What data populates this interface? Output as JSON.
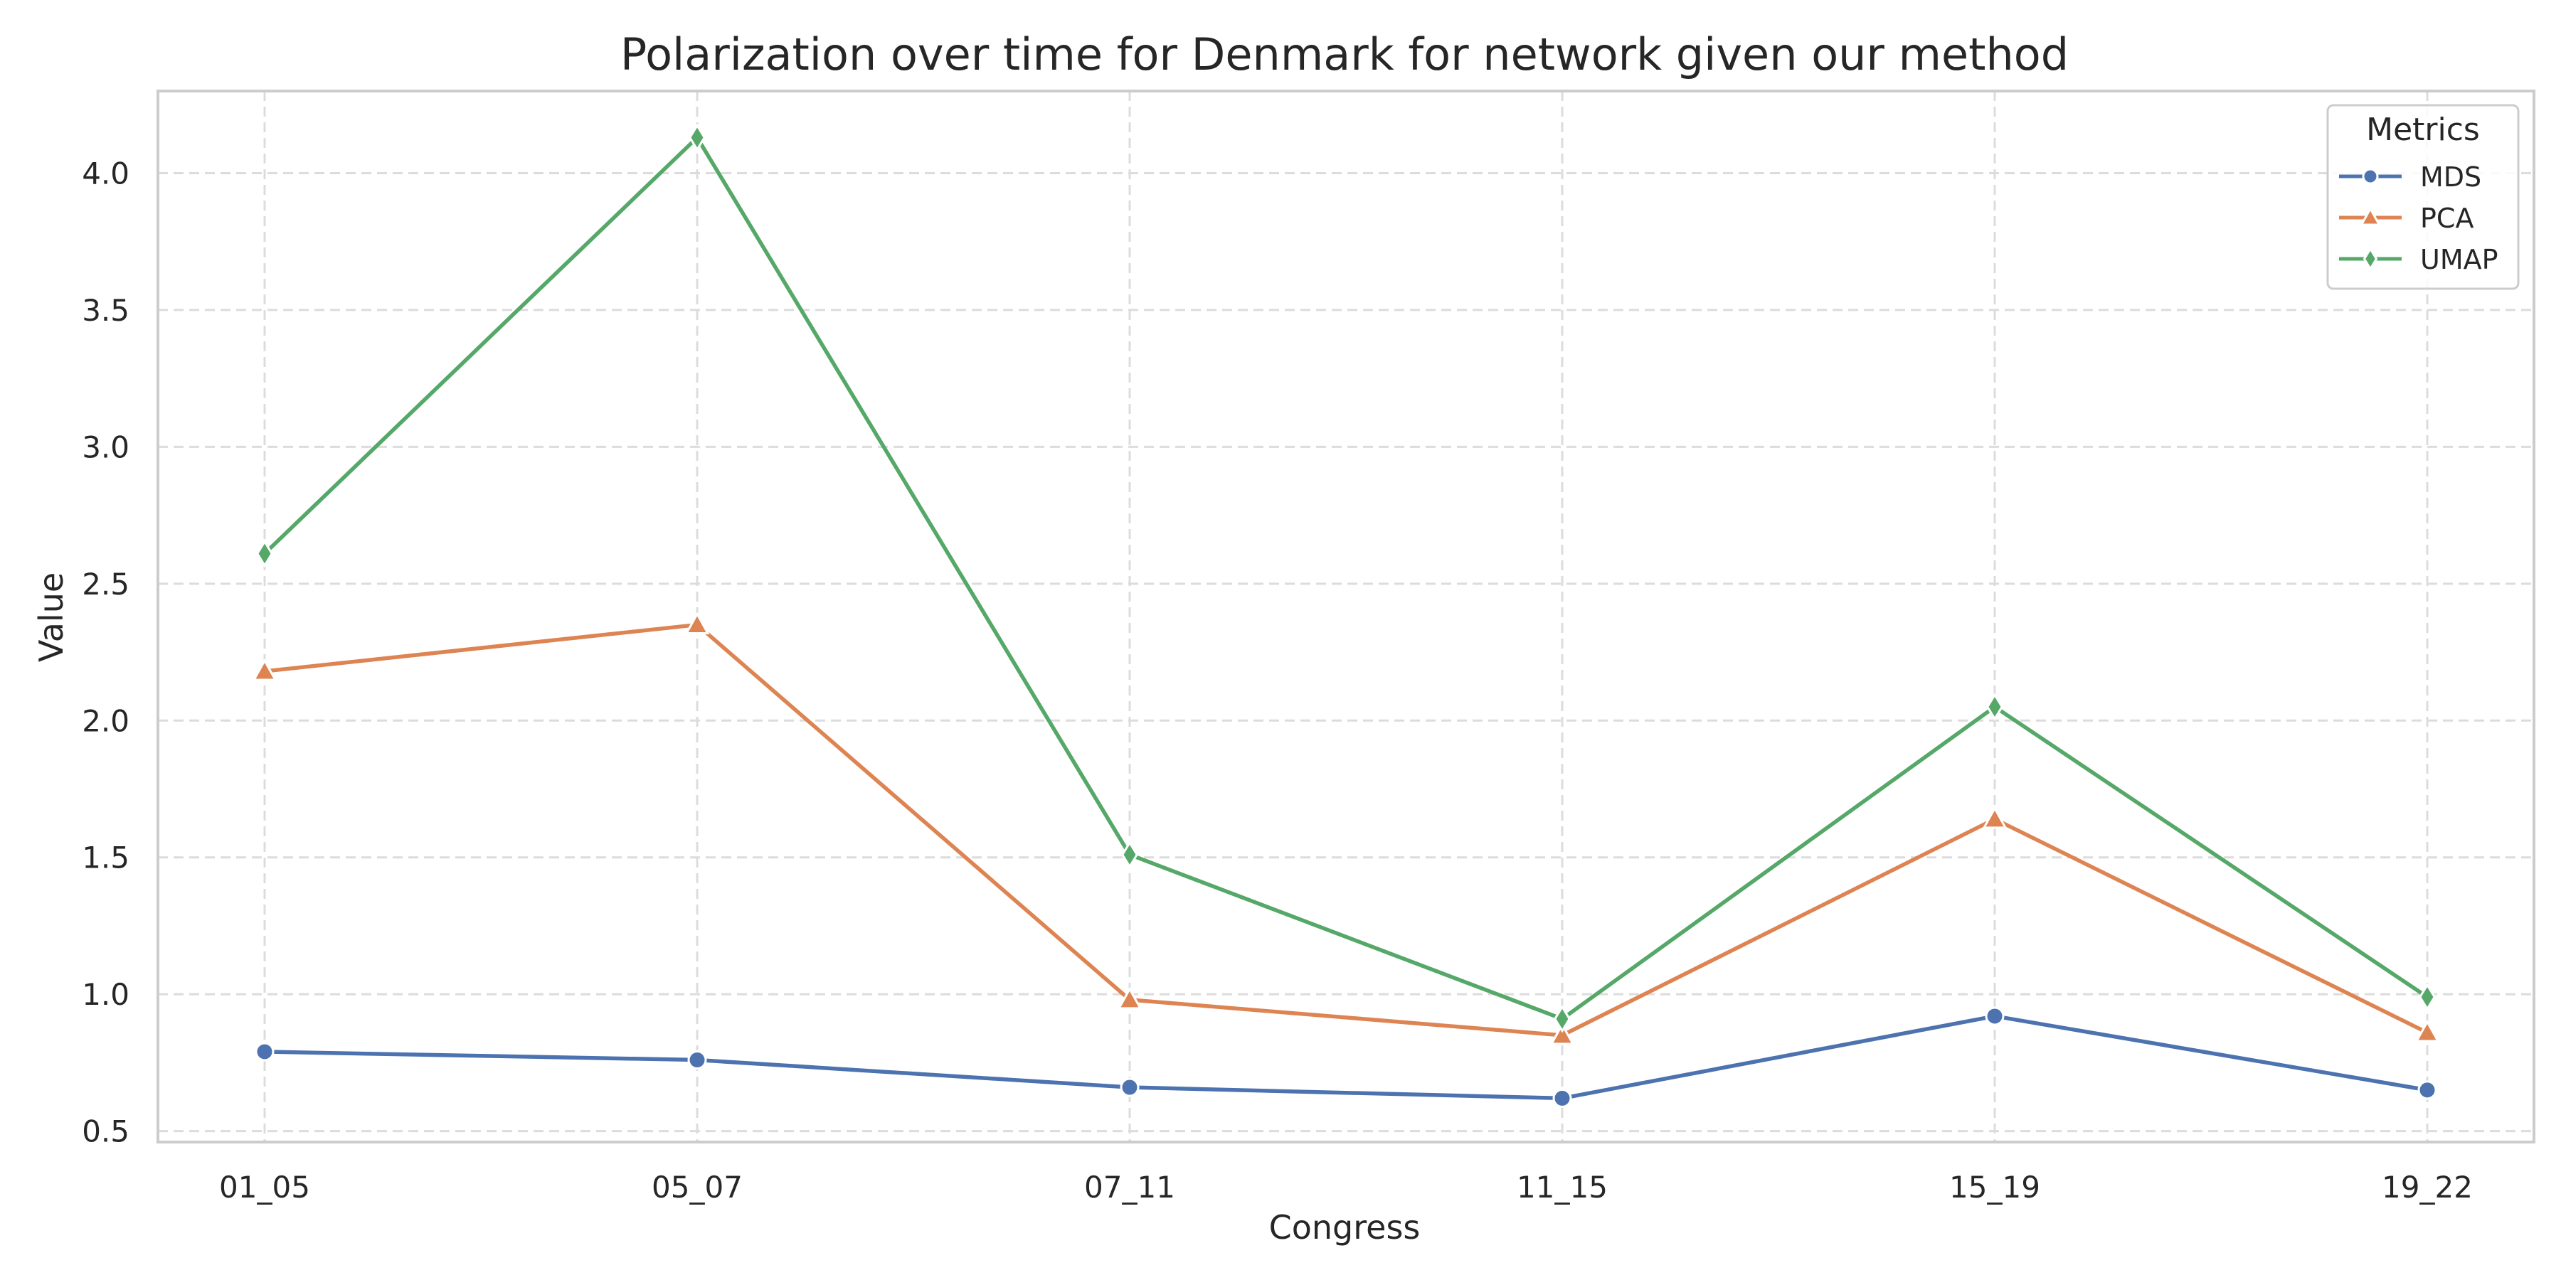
{
  "chart_data": {
    "type": "line",
    "title": "Polarization over time for Denmark for network given our method",
    "xlabel": "Congress",
    "ylabel": "Value",
    "categories": [
      "01_05",
      "05_07",
      "07_11",
      "11_15",
      "15_19",
      "19_22"
    ],
    "ylim": [
      0.46,
      4.3
    ],
    "yticks": [
      0.5,
      1.0,
      1.5,
      2.0,
      2.5,
      3.0,
      3.5,
      4.0
    ],
    "ytick_labels": [
      "0.5",
      "1.0",
      "1.5",
      "2.0",
      "2.5",
      "3.0",
      "3.5",
      "4.0"
    ],
    "grid": true,
    "legend": {
      "title": "Metrics",
      "placement": "top-right"
    },
    "series": [
      {
        "name": "MDS",
        "color": "#4c72b0",
        "marker": "circle",
        "values": [
          0.79,
          0.76,
          0.66,
          0.62,
          0.92,
          0.65
        ]
      },
      {
        "name": "PCA",
        "color": "#dd8452",
        "marker": "triangle",
        "values": [
          2.18,
          2.35,
          0.98,
          0.85,
          1.64,
          0.86
        ]
      },
      {
        "name": "UMAP",
        "color": "#55a868",
        "marker": "diamond",
        "values": [
          2.61,
          4.13,
          1.51,
          0.91,
          2.05,
          0.99
        ]
      }
    ]
  }
}
